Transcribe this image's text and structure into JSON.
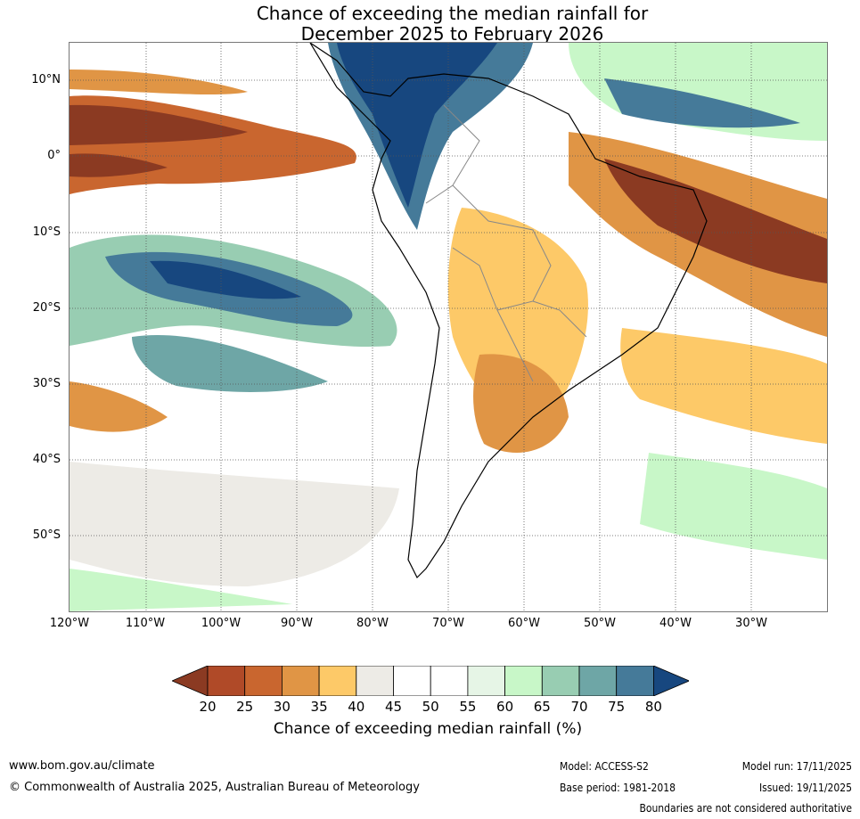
{
  "title": {
    "line1": "Chance of exceeding the median rainfall for",
    "line2": "December 2025 to February 2026"
  },
  "map": {
    "lat_labels": [
      "10°N",
      "0°",
      "10°S",
      "20°S",
      "30°S",
      "40°S",
      "50°S"
    ],
    "lon_labels": [
      "120°W",
      "110°W",
      "100°W",
      "90°W",
      "80°W",
      "70°W",
      "60°W",
      "50°W",
      "40°W",
      "30°W"
    ]
  },
  "legend": {
    "title": "Chance of exceeding median rainfall (%)",
    "ticks": [
      "20",
      "25",
      "30",
      "35",
      "40",
      "45",
      "50",
      "55",
      "60",
      "65",
      "70",
      "75",
      "80"
    ],
    "colors": [
      "#8b3a22",
      "#b04a28",
      "#c9662f",
      "#e09545",
      "#fdc968",
      "#edebe6",
      "#ffffff",
      "#ffffff",
      "#e6f5e6",
      "#c8f7c8",
      "#98cdb2",
      "#6ea6a6",
      "#457a99",
      "#17477f"
    ]
  },
  "footer": {
    "url": "www.bom.gov.au/climate",
    "copyright": "© Commonwealth of Australia 2025, Australian Bureau of Meteorology",
    "model": "Model: ACCESS-S2",
    "base_period": "Base period: 1981-2018",
    "model_run": "Model run: 17/11/2025",
    "issued": "Issued: 19/11/2025",
    "boundaries_note": "Boundaries are not considered authoritative"
  }
}
